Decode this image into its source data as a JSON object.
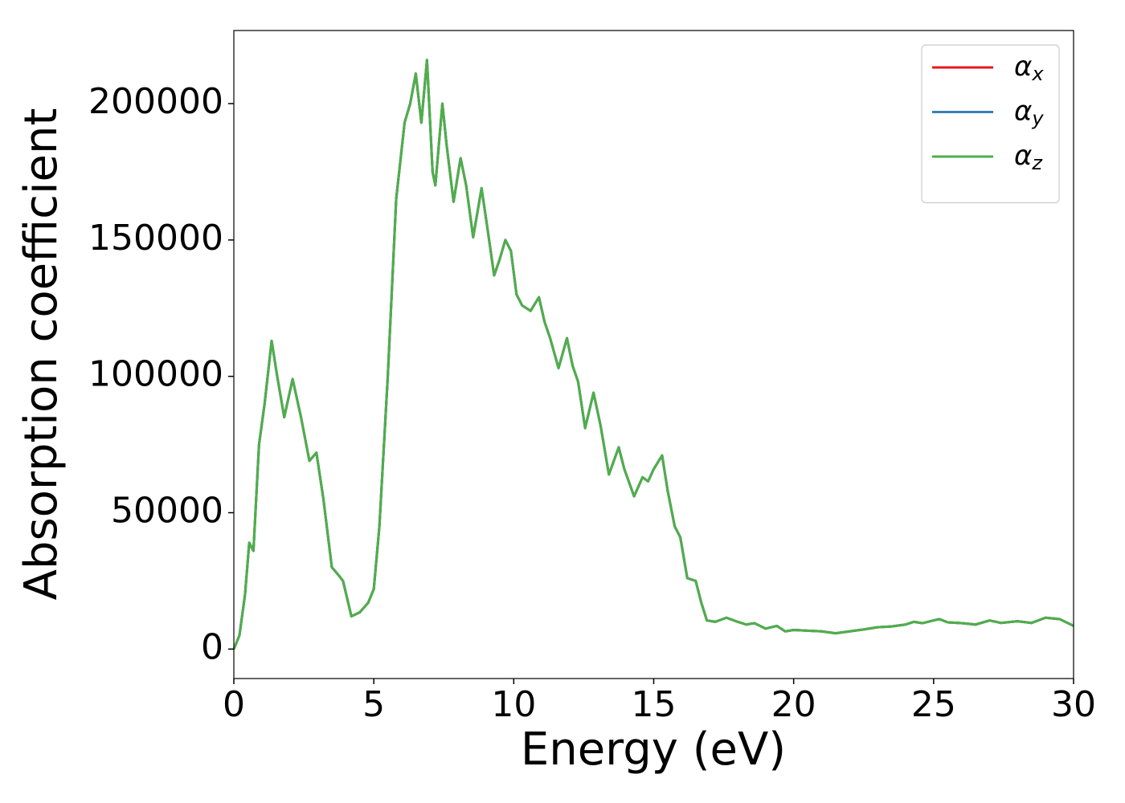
{
  "chart_data": {
    "type": "line",
    "xlabel": "Energy (eV)",
    "ylabel": "Absorption coefficient",
    "x": [
      0,
      0.2,
      0.4,
      0.55,
      0.7,
      0.9,
      1.1,
      1.35,
      1.55,
      1.8,
      2.1,
      2.4,
      2.7,
      2.95,
      3.2,
      3.5,
      3.75,
      3.9,
      4.2,
      4.5,
      4.8,
      5.0,
      5.2,
      5.5,
      5.8,
      6.1,
      6.3,
      6.5,
      6.7,
      6.9,
      7.1,
      7.2,
      7.45,
      7.6,
      7.85,
      8.1,
      8.3,
      8.55,
      8.85,
      9.05,
      9.3,
      9.5,
      9.7,
      9.9,
      10.1,
      10.3,
      10.6,
      10.9,
      11.1,
      11.3,
      11.6,
      11.9,
      12.1,
      12.3,
      12.55,
      12.85,
      13.1,
      13.4,
      13.75,
      13.95,
      14.3,
      14.6,
      14.8,
      15.0,
      15.3,
      15.5,
      15.75,
      15.95,
      16.2,
      16.5,
      16.7,
      16.9,
      17.2,
      17.6,
      18.0,
      18.3,
      18.6,
      19.0,
      19.4,
      19.7,
      20.0,
      21.0,
      21.5,
      22.0,
      22.5,
      23.0,
      23.5,
      24.0,
      24.3,
      24.6,
      25.2,
      25.5,
      26.0,
      26.5,
      27.0,
      27.4,
      28.0,
      28.5,
      29.0,
      29.5,
      30.0
    ],
    "series": [
      {
        "name": "αx",
        "color": "#e41a1c",
        "values": [
          0,
          5000,
          20000,
          39000,
          36000,
          75000,
          90000,
          113000,
          100000,
          85000,
          99000,
          85000,
          69000,
          72000,
          55000,
          30000,
          27000,
          25000,
          12000,
          13500,
          17000,
          22000,
          45000,
          100000,
          165000,
          193000,
          200000,
          211000,
          193000,
          216000,
          175000,
          170000,
          200000,
          185000,
          164000,
          180000,
          170000,
          151000,
          169000,
          155000,
          137000,
          143000,
          150000,
          146000,
          130000,
          126000,
          124000,
          129000,
          120000,
          114000,
          103000,
          114000,
          104000,
          98000,
          81000,
          94000,
          82000,
          64000,
          74000,
          66000,
          56000,
          63000,
          61500,
          66000,
          71000,
          58000,
          45000,
          41000,
          26000,
          25000,
          17000,
          10500,
          10000,
          11500,
          10000,
          9000,
          9500,
          7500,
          8500,
          6500,
          7000,
          6500,
          5800,
          6500,
          7200,
          8000,
          8300,
          9000,
          10000,
          9500,
          11000,
          9800,
          9500,
          9000,
          10500,
          9600,
          10200,
          9600,
          11500,
          11000,
          8500
        ]
      },
      {
        "name": "αy",
        "color": "#377eb8",
        "values": [
          0,
          5000,
          20000,
          39000,
          36000,
          75000,
          90000,
          113000,
          100000,
          85000,
          99000,
          85000,
          69000,
          72000,
          55000,
          30000,
          27000,
          25000,
          12000,
          13500,
          17000,
          22000,
          45000,
          100000,
          165000,
          193000,
          200000,
          211000,
          193000,
          216000,
          175000,
          170000,
          200000,
          185000,
          164000,
          180000,
          170000,
          151000,
          169000,
          155000,
          137000,
          143000,
          150000,
          146000,
          130000,
          126000,
          124000,
          129000,
          120000,
          114000,
          103000,
          114000,
          104000,
          98000,
          81000,
          94000,
          82000,
          64000,
          74000,
          66000,
          56000,
          63000,
          61500,
          66000,
          71000,
          58000,
          45000,
          41000,
          26000,
          25000,
          17000,
          10500,
          10000,
          11500,
          10000,
          9000,
          9500,
          7500,
          8500,
          6500,
          7000,
          6500,
          5800,
          6500,
          7200,
          8000,
          8300,
          9000,
          10000,
          9500,
          11000,
          9800,
          9500,
          9000,
          10500,
          9600,
          10200,
          9600,
          11500,
          11000,
          8500
        ]
      },
      {
        "name": "αz",
        "color": "#4daf4a",
        "values": [
          0,
          5000,
          20000,
          39000,
          36000,
          75000,
          90000,
          113000,
          100000,
          85000,
          99000,
          85000,
          69000,
          72000,
          55000,
          30000,
          27000,
          25000,
          12000,
          13500,
          17000,
          22000,
          45000,
          100000,
          165000,
          193000,
          200000,
          211000,
          193000,
          216000,
          175000,
          170000,
          200000,
          185000,
          164000,
          180000,
          170000,
          151000,
          169000,
          155000,
          137000,
          143000,
          150000,
          146000,
          130000,
          126000,
          124000,
          129000,
          120000,
          114000,
          103000,
          114000,
          104000,
          98000,
          81000,
          94000,
          82000,
          64000,
          74000,
          66000,
          56000,
          63000,
          61500,
          66000,
          71000,
          58000,
          45000,
          41000,
          26000,
          25000,
          17000,
          10500,
          10000,
          11500,
          10000,
          9000,
          9500,
          7500,
          8500,
          6500,
          7000,
          6500,
          5800,
          6500,
          7200,
          8000,
          8300,
          9000,
          10000,
          9500,
          11000,
          9800,
          9500,
          9000,
          10500,
          9600,
          10200,
          9600,
          11500,
          11000,
          8500
        ]
      }
    ],
    "xlim": [
      0,
      30
    ],
    "xticks": [
      0,
      5,
      10,
      15,
      20,
      25,
      30
    ],
    "ylim": [
      -10800,
      226800
    ],
    "yticks": [
      0,
      50000,
      100000,
      150000,
      200000
    ],
    "grid": false,
    "legend": "upper right"
  }
}
